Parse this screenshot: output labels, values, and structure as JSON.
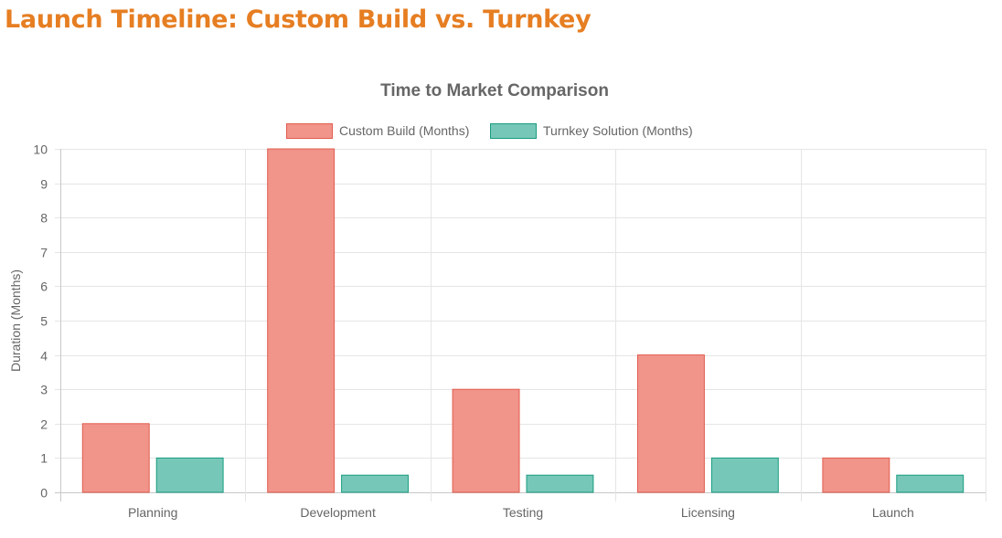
{
  "page": {
    "heading": "Launch Timeline: Custom Build vs. Turnkey"
  },
  "chart_data": {
    "type": "bar",
    "title": "Time to Market Comparison",
    "categories": [
      "Planning",
      "Development",
      "Testing",
      "Licensing",
      "Launch"
    ],
    "series": [
      {
        "name": "Custom Build (Months)",
        "values": [
          2,
          10,
          3,
          4,
          1
        ],
        "fill": "#f1948a",
        "stroke": "#e05d4e"
      },
      {
        "name": "Turnkey Solution (Months)",
        "values": [
          1,
          0.5,
          0.5,
          1,
          0.5
        ],
        "fill": "#76c7b7",
        "stroke": "#1a9c80"
      }
    ],
    "xlabel": "",
    "ylabel": "Duration (Months)",
    "ylim": [
      0,
      10
    ],
    "yticks": [
      0,
      1,
      2,
      3,
      4,
      5,
      6,
      7,
      8,
      9,
      10
    ],
    "grid": true,
    "legend_position": "top"
  }
}
